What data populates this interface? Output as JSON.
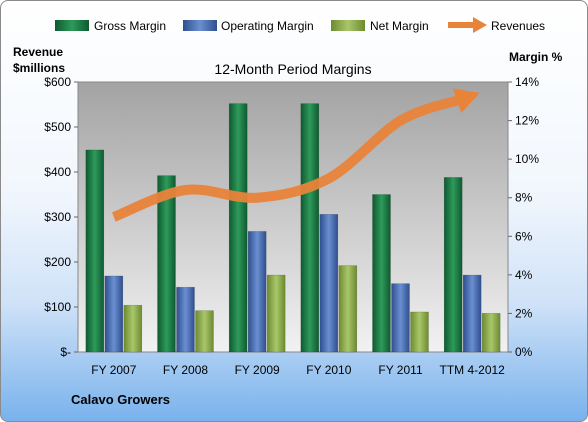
{
  "chart_data": {
    "type": "bar",
    "title": "12-Month Period Margins",
    "company": "Calavo Growers",
    "left_axis": {
      "label_lines": [
        "Revenue",
        "$millions"
      ],
      "ylim": [
        0,
        600
      ],
      "ticks": [
        0,
        100,
        200,
        300,
        400,
        500,
        600
      ],
      "tick_labels": [
        "$-",
        "$100",
        "$200",
        "$300",
        "$400",
        "$500",
        "$600"
      ]
    },
    "right_axis": {
      "label": "Margin %",
      "ylim": [
        0,
        14
      ],
      "ticks": [
        0,
        2,
        4,
        6,
        8,
        10,
        12,
        14
      ],
      "tick_labels": [
        "0%",
        "2%",
        "4%",
        "6%",
        "8%",
        "10%",
        "12%",
        "14%"
      ]
    },
    "categories": [
      "FY 2007",
      "FY 2008",
      "FY 2009",
      "FY 2010",
      "FY 2011",
      "TTM 4-2012"
    ],
    "series": [
      {
        "name": "Gross Margin",
        "type": "bar",
        "axis": "left",
        "color": "#1f7a45",
        "values": [
          449,
          392,
          552,
          552,
          350,
          388
        ]
      },
      {
        "name": "Operating Margin",
        "type": "bar",
        "axis": "left",
        "color": "#4a6fb3",
        "values": [
          169,
          144,
          268,
          306,
          152,
          171
        ]
      },
      {
        "name": "Net Margin",
        "type": "bar",
        "axis": "left",
        "color": "#8fae4d",
        "values": [
          104,
          92,
          171,
          192,
          89,
          86
        ]
      },
      {
        "name": "Revenues",
        "type": "line",
        "axis": "right",
        "color": "#e8833a",
        "values": [
          7.0,
          8.4,
          8.0,
          9.0,
          12.0,
          13.3
        ]
      }
    ],
    "grid": false,
    "legend_position": "top"
  }
}
